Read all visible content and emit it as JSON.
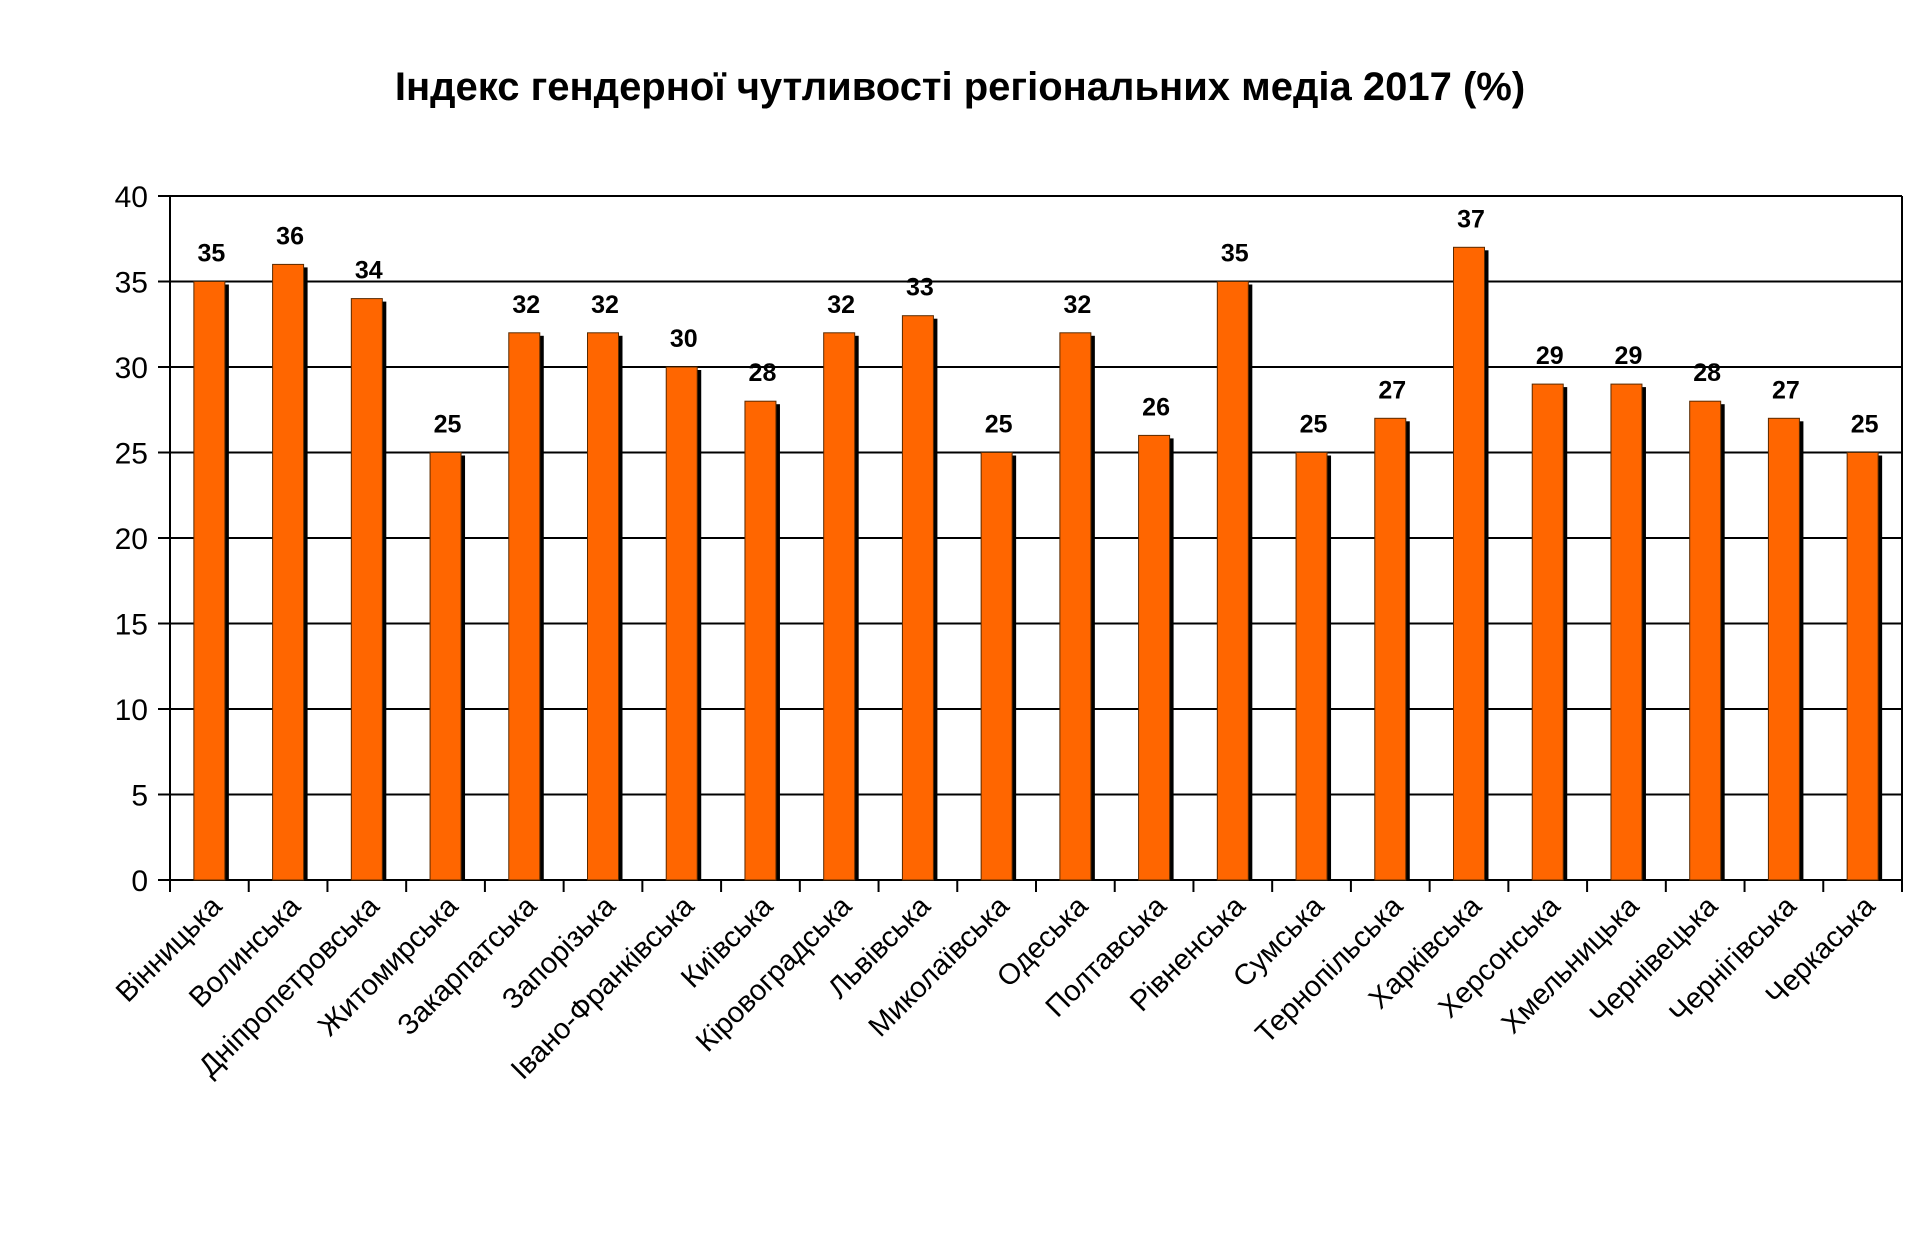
{
  "chart_data": {
    "type": "bar",
    "title": "Індекс гендерної чутливості регіональних медіа 2017 (%)",
    "xlabel": "",
    "ylabel": "",
    "categories": [
      "Вінницька",
      "Волинська",
      "Дніпропетровська",
      "Житомирська",
      "Закарпатська",
      "Запорізька",
      "Івано-Франківська",
      "Київська",
      "Кіровоградська",
      "Львівська",
      "Миколаївська",
      "Одеська",
      "Полтавська",
      "Рівненська",
      "Сумська",
      "Тернопільська",
      "Харківська",
      "Херсонська",
      "Хмельницька",
      "Чернівецька",
      "Чернігівська",
      "Черкаська"
    ],
    "values": [
      35,
      36,
      34,
      25,
      32,
      32,
      30,
      28,
      32,
      33,
      25,
      32,
      26,
      35,
      25,
      27,
      37,
      29,
      29,
      28,
      27,
      25
    ],
    "ylim": [
      0,
      40
    ],
    "yticks": [
      "0",
      "5",
      "10",
      "15",
      "20",
      "25",
      "30",
      "35",
      "40"
    ],
    "grid": true,
    "legend": "none",
    "colors": {
      "bar": "#ff6600",
      "bar_shadow": "#000000",
      "gridline": "#000000",
      "axis": "#000000"
    }
  }
}
